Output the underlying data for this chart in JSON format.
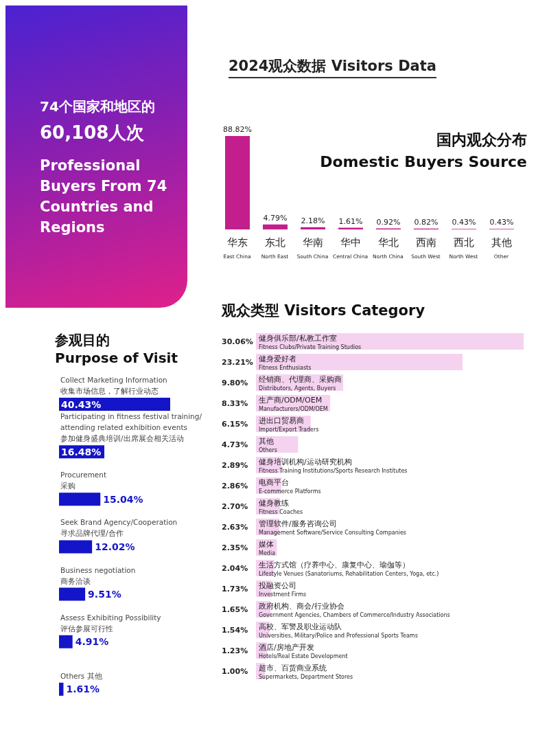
{
  "chart_data": [
    {
      "type": "other",
      "annotations": [
        "74个国家和地区的",
        "60,108人次",
        "Professional Buyers From 74 Countries and Regions"
      ]
    },
    {
      "type": "bar",
      "title": "2024观众数据  Visitors Data",
      "subtitle": "国内观众分布\nDomestic Buyers Source",
      "categories": [
        "华东\nEast China",
        "东北\nNorth East",
        "华南\nSouth China",
        "华中\nCentral China",
        "华北\nNorth China",
        "西南\nSouth West",
        "西北\nNorth West",
        "其他\nOther"
      ],
      "values": [
        88.82,
        4.79,
        2.18,
        1.61,
        0.92,
        0.82,
        0.43,
        0.43
      ],
      "value_labels": [
        "88.82%",
        "4.79%",
        "2.18%",
        "1.61%",
        "0.92%",
        "0.82%",
        "0.43%",
        "0.43%"
      ],
      "color": "#c21f8c",
      "legend": false
    },
    {
      "type": "bar",
      "orientation": "horizontal",
      "title": "观众类型  Visitors Category",
      "categories": [
        "健身俱乐部/私教工作室\nFitness Clubs/Private Training Studios",
        "健身爱好者\nFitness Enthusiasts",
        "经销商、代理商、采购商\nDistributors, Agents, Buyers",
        "生产商/ODM/OEM\nManufacturers/ODM/OEM",
        "进出口贸易商\nImport/Export Traders",
        "其他\nOthers",
        "健身培训机构/运动研究机构\nFitness Training Institutions/Sports Research Institutes",
        "电商平台\nE-commerce Platforms",
        "健身教练\nFitness Coaches",
        "管理软件/服务咨询公司\nManagement Software/Service Consulting Companies",
        "媒体\nMedia",
        "生活方式馆（疗养中心、康复中心、瑜伽等）\nLifestyle Venues (Sanatoriums, Rehabilitation Centers, Yoga, etc.)",
        "投融资公司\nInvestment Firms",
        "政府机构、商会/行业协会\nGovernment Agencies, Chambers of Commerce/Industry Associations",
        "高校、军警及职业运动队\nUniversities, Military/Police and Professional Sports Teams",
        "酒店/房地产开发\nHotels/Real Estate Development",
        "超市、百货商业系统\nSupermarkets, Department Stores"
      ],
      "values": [
        30.06,
        23.21,
        9.8,
        8.33,
        6.15,
        4.73,
        2.89,
        2.86,
        2.7,
        2.63,
        2.35,
        2.04,
        1.73,
        1.65,
        1.54,
        1.23,
        1.0
      ],
      "value_labels": [
        "30.06%",
        "23.21%",
        "9.80%",
        "8.33%",
        "6.15%",
        "4.73%",
        "2.89%",
        "2.86%",
        "2.70%",
        "2.63%",
        "2.35%",
        "2.04%",
        "1.73%",
        "1.65%",
        "1.54%",
        "1.23%",
        "1.00%"
      ],
      "color": "#f5d2f0",
      "legend": false
    },
    {
      "type": "bar",
      "orientation": "horizontal",
      "title": "参观目的\nPurpose of Visit",
      "categories": [
        "Collect Marketing Information\n收集市场信息，了解行业动态",
        "Participating in fitness festival training/\nattending related exhibition events\n参加健身盛典培训/出席展会相关活动",
        "Procurement\n采购",
        "Seek Brand Agency/Cooperation\n寻求品牌代理/合作",
        "Business negotiation\n商务洽谈",
        "Assess Exhibiting Possibility\n评估参展可行性",
        "Others 其他"
      ],
      "values": [
        40.43,
        16.48,
        15.04,
        12.02,
        9.51,
        4.91,
        1.61
      ],
      "value_labels": [
        "40.43%",
        "16.48%",
        "15.04%",
        "12.02%",
        "9.51%",
        "4.91%",
        "1.61%"
      ],
      "color": "#1414c8",
      "legend": false
    }
  ]
}
